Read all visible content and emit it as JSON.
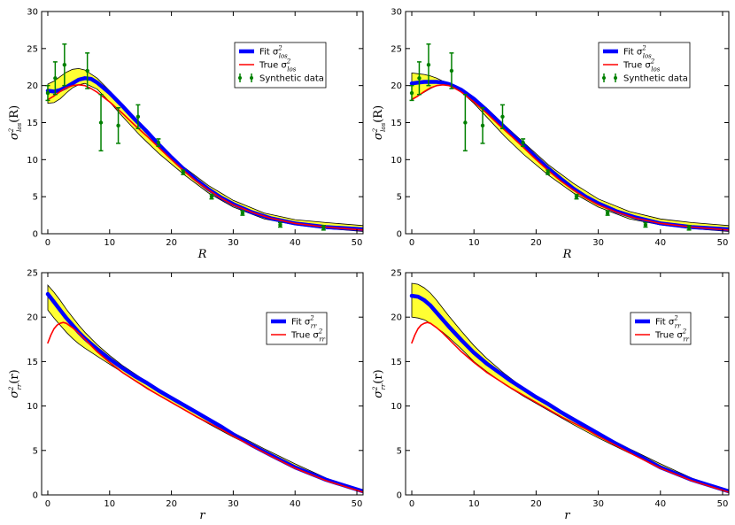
{
  "chart_data": [
    {
      "type": "line",
      "title": "",
      "xlabel": "R",
      "ylabel": {
        "base": "σ",
        "sup": "2",
        "sub": "los",
        "arg": "(R)"
      },
      "xlim": [
        -1,
        51
      ],
      "ylim": [
        0,
        30
      ],
      "xticks": [
        0,
        10,
        20,
        30,
        40,
        50
      ],
      "yticks": [
        0,
        5,
        10,
        15,
        20,
        25,
        30
      ],
      "legend": {
        "position": "upper-right",
        "entries": [
          {
            "series": "fit",
            "text": "Fit σ",
            "sup": "2",
            "sub": "los"
          },
          {
            "series": "true",
            "text": "True σ",
            "sup": "2",
            "sub": "los"
          },
          {
            "series": "data",
            "text": "Synthetic data"
          }
        ]
      },
      "colors": {
        "fit": "#0000ff",
        "true": "#ff0000",
        "data": "#008000",
        "band": "#ffff33"
      },
      "band_x": [
        0,
        1,
        2,
        3,
        4,
        5,
        6,
        8,
        10,
        12,
        15,
        18,
        22,
        26,
        30,
        35,
        40,
        45,
        51
      ],
      "band_upper": [
        20.2,
        20.6,
        21.2,
        21.8,
        22.2,
        22.3,
        22.1,
        21.0,
        19.3,
        17.3,
        14.6,
        12.0,
        9.0,
        6.5,
        4.5,
        2.8,
        1.9,
        1.5,
        1.1
      ],
      "band_lower": [
        17.6,
        17.7,
        18.2,
        19.0,
        19.7,
        20.1,
        20.3,
        19.5,
        17.8,
        15.9,
        13.2,
        10.8,
        8.0,
        5.5,
        3.6,
        2.0,
        1.2,
        0.7,
        0.3
      ],
      "series": [
        {
          "id": "fit",
          "x": [
            0,
            1,
            2,
            3,
            4,
            5,
            6,
            7,
            8,
            10,
            12,
            14,
            16,
            18,
            20,
            22,
            24,
            26,
            28,
            30,
            33,
            36,
            40,
            45,
            51
          ],
          "y": [
            19.3,
            19.2,
            19.4,
            19.8,
            20.3,
            20.8,
            21.0,
            20.9,
            20.4,
            19.0,
            17.3,
            15.5,
            13.8,
            12.0,
            10.3,
            8.7,
            7.3,
            6.0,
            4.9,
            4.0,
            2.9,
            2.1,
            1.4,
            0.9,
            0.6
          ]
        },
        {
          "id": "true",
          "x": [
            0,
            1,
            2,
            3,
            4,
            5,
            6,
            7,
            8,
            10,
            12,
            14,
            16,
            18,
            20,
            22,
            24,
            26,
            28,
            30,
            33,
            36,
            40,
            45,
            51
          ],
          "y": [
            18.1,
            18.6,
            19.2,
            19.7,
            20.0,
            20.1,
            20.0,
            19.6,
            19.1,
            17.8,
            16.3,
            14.7,
            13.2,
            11.6,
            10.0,
            8.5,
            7.1,
            5.9,
            4.8,
            3.9,
            2.9,
            2.1,
            1.4,
            0.9,
            0.5
          ]
        }
      ],
      "points": {
        "x": [
          0.0,
          1.2,
          2.7,
          6.4,
          8.6,
          11.4,
          14.6,
          17.9,
          21.9,
          26.5,
          31.5,
          37.6,
          44.6
        ],
        "y": [
          19.0,
          21.0,
          22.8,
          22.0,
          15.0,
          14.6,
          15.8,
          12.3,
          8.3,
          5.0,
          2.8,
          1.2,
          0.8
        ],
        "err": [
          1.0,
          2.2,
          2.8,
          2.4,
          3.8,
          2.4,
          1.6,
          0.5,
          0.3,
          0.3,
          0.3,
          0.3,
          0.3
        ]
      }
    },
    {
      "type": "line",
      "title": "",
      "xlabel": "R",
      "ylabel": {
        "base": "σ",
        "sup": "2",
        "sub": "los",
        "arg": "(R)"
      },
      "xlim": [
        -1,
        51
      ],
      "ylim": [
        0,
        30
      ],
      "xticks": [
        0,
        10,
        20,
        30,
        40,
        50
      ],
      "yticks": [
        0,
        5,
        10,
        15,
        20,
        25,
        30
      ],
      "legend": {
        "position": "upper-right",
        "entries": [
          {
            "series": "fit",
            "text": "Fit σ",
            "sup": "2",
            "sub": "los"
          },
          {
            "series": "true",
            "text": "True σ",
            "sup": "2",
            "sub": "los"
          },
          {
            "series": "data",
            "text": "Synthetic data"
          }
        ]
      },
      "colors": {
        "fit": "#0000ff",
        "true": "#ff0000",
        "data": "#008000",
        "band": "#ffff33"
      },
      "band_x": [
        0,
        1,
        2,
        3,
        4,
        5,
        6,
        8,
        10,
        12,
        15,
        18,
        22,
        26,
        30,
        35,
        40,
        45,
        51
      ],
      "band_upper": [
        21.7,
        21.6,
        21.5,
        21.3,
        21.0,
        20.6,
        20.3,
        19.5,
        18.4,
        17.0,
        14.6,
        12.3,
        9.3,
        6.8,
        4.7,
        3.0,
        2.0,
        1.5,
        1.1
      ],
      "band_lower": [
        18.2,
        18.6,
        19.1,
        19.6,
        20.0,
        20.1,
        20.0,
        19.1,
        17.6,
        15.8,
        13.1,
        10.7,
        7.9,
        5.5,
        3.6,
        2.0,
        1.2,
        0.7,
        0.3
      ],
      "series": [
        {
          "id": "fit",
          "x": [
            0,
            1,
            2,
            3,
            4,
            5,
            6,
            7,
            8,
            10,
            12,
            14,
            16,
            18,
            20,
            22,
            24,
            26,
            28,
            30,
            33,
            36,
            40,
            45,
            51
          ],
          "y": [
            20.3,
            20.4,
            20.5,
            20.5,
            20.5,
            20.4,
            20.2,
            19.8,
            19.4,
            18.2,
            16.7,
            15.1,
            13.5,
            11.9,
            10.3,
            8.8,
            7.4,
            6.1,
            5.0,
            4.1,
            3.0,
            2.2,
            1.4,
            0.9,
            0.6
          ]
        },
        {
          "id": "true",
          "x": [
            0,
            1,
            2,
            3,
            4,
            5,
            6,
            7,
            8,
            10,
            12,
            14,
            16,
            18,
            20,
            22,
            24,
            26,
            28,
            30,
            33,
            36,
            40,
            45,
            51
          ],
          "y": [
            18.1,
            18.6,
            19.2,
            19.7,
            20.0,
            20.1,
            20.0,
            19.6,
            19.1,
            17.8,
            16.3,
            14.7,
            13.2,
            11.6,
            10.0,
            8.5,
            7.1,
            5.9,
            4.8,
            3.9,
            2.9,
            2.1,
            1.4,
            0.9,
            0.5
          ]
        }
      ],
      "points": {
        "x": [
          0.0,
          1.2,
          2.7,
          6.4,
          8.6,
          11.4,
          14.6,
          17.9,
          21.9,
          26.5,
          31.5,
          37.6,
          44.6
        ],
        "y": [
          19.0,
          21.0,
          22.8,
          22.0,
          15.0,
          14.6,
          15.8,
          12.3,
          8.3,
          5.0,
          2.8,
          1.2,
          0.8
        ],
        "err": [
          1.0,
          2.2,
          2.8,
          2.4,
          3.8,
          2.4,
          1.6,
          0.5,
          0.3,
          0.3,
          0.3,
          0.3,
          0.3
        ]
      }
    },
    {
      "type": "line",
      "title": "",
      "xlabel": "r",
      "ylabel": {
        "base": "σ",
        "sup": "2",
        "sub": "rr",
        "arg": "(r)"
      },
      "xlim": [
        -1,
        51
      ],
      "ylim": [
        0,
        25
      ],
      "xticks": [
        0,
        10,
        20,
        30,
        40,
        50
      ],
      "yticks": [
        0,
        5,
        10,
        15,
        20,
        25
      ],
      "legend": {
        "position": "upper-right",
        "entries": [
          {
            "series": "fit",
            "text": "Fit σ",
            "sup": "2",
            "sub": "rr"
          },
          {
            "series": "true",
            "text": "True σ",
            "sup": "2",
            "sub": "rr"
          }
        ]
      },
      "colors": {
        "fit": "#0000ff",
        "true": "#ff0000",
        "band": "#ffff33"
      },
      "band_x": [
        0,
        1,
        2,
        3,
        4,
        5,
        6,
        8,
        10,
        12,
        15,
        18,
        22,
        26,
        30,
        35,
        40,
        45,
        51
      ],
      "band_upper": [
        23.6,
        22.8,
        21.9,
        20.9,
        20.0,
        19.1,
        18.3,
        16.9,
        15.7,
        14.6,
        13.2,
        11.9,
        10.2,
        8.6,
        7.0,
        5.2,
        3.5,
        1.9,
        0.4
      ],
      "band_lower": [
        20.8,
        19.9,
        19.1,
        18.3,
        17.6,
        17.0,
        16.5,
        15.6,
        14.7,
        13.8,
        12.5,
        11.2,
        9.6,
        8.0,
        6.5,
        4.8,
        3.2,
        1.7,
        0.3
      ],
      "series": [
        {
          "id": "fit",
          "x": [
            0,
            1,
            2,
            3,
            4,
            5,
            6,
            8,
            10,
            12,
            14,
            16,
            18,
            20,
            22,
            24,
            26,
            28,
            30,
            33,
            36,
            40,
            45,
            51
          ],
          "y": [
            22.6,
            21.7,
            20.8,
            19.9,
            19.1,
            18.3,
            17.6,
            16.4,
            15.3,
            14.3,
            13.4,
            12.6,
            11.7,
            10.9,
            10.1,
            9.3,
            8.5,
            7.7,
            6.8,
            5.6,
            4.5,
            3.1,
            1.7,
            0.4
          ]
        },
        {
          "id": "true",
          "x": [
            0,
            0.5,
            1,
            1.5,
            2,
            2.5,
            3,
            4,
            5,
            6,
            8,
            10,
            12,
            14,
            16,
            18,
            20,
            22,
            24,
            26,
            28,
            30,
            33,
            36,
            40,
            45,
            51
          ],
          "y": [
            17.1,
            18.0,
            18.7,
            19.1,
            19.3,
            19.4,
            19.3,
            18.8,
            18.2,
            17.5,
            16.1,
            14.9,
            13.8,
            12.9,
            12.0,
            11.2,
            10.4,
            9.6,
            8.8,
            8.1,
            7.4,
            6.6,
            5.5,
            4.4,
            3.0,
            1.6,
            0.3
          ]
        }
      ]
    },
    {
      "type": "line",
      "title": "",
      "xlabel": "r",
      "ylabel": {
        "base": "σ",
        "sup": "2",
        "sub": "rr",
        "arg": "(r)"
      },
      "xlim": [
        -1,
        51
      ],
      "ylim": [
        0,
        25
      ],
      "xticks": [
        0,
        10,
        20,
        30,
        40,
        50
      ],
      "yticks": [
        0,
        5,
        10,
        15,
        20,
        25
      ],
      "legend": {
        "position": "upper-right",
        "entries": [
          {
            "series": "fit",
            "text": "Fit σ",
            "sup": "2",
            "sub": "rr"
          },
          {
            "series": "true",
            "text": "True σ",
            "sup": "2",
            "sub": "rr"
          }
        ]
      },
      "colors": {
        "fit": "#0000ff",
        "true": "#ff0000",
        "band": "#ffff33"
      },
      "band_x": [
        0,
        1,
        2,
        3,
        4,
        5,
        6,
        8,
        10,
        12,
        15,
        18,
        22,
        26,
        30,
        35,
        40,
        45,
        51
      ],
      "band_upper": [
        23.8,
        23.7,
        23.3,
        22.7,
        21.9,
        21.0,
        20.1,
        18.4,
        16.8,
        15.4,
        13.6,
        12.0,
        10.3,
        8.6,
        7.0,
        5.2,
        3.5,
        1.9,
        0.4
      ],
      "band_lower": [
        20.0,
        19.9,
        19.7,
        19.3,
        18.8,
        18.3,
        17.7,
        16.4,
        15.0,
        13.9,
        12.4,
        11.1,
        9.5,
        7.9,
        6.4,
        4.7,
        3.1,
        1.7,
        0.3
      ],
      "series": [
        {
          "id": "fit",
          "x": [
            0,
            1,
            2,
            3,
            4,
            5,
            6,
            8,
            10,
            12,
            14,
            16,
            18,
            20,
            22,
            24,
            26,
            28,
            30,
            33,
            36,
            40,
            45,
            51
          ],
          "y": [
            22.4,
            22.3,
            21.9,
            21.3,
            20.5,
            19.7,
            18.9,
            17.4,
            16.0,
            14.8,
            13.8,
            12.8,
            11.9,
            11.0,
            10.2,
            9.3,
            8.5,
            7.7,
            6.9,
            5.7,
            4.6,
            3.1,
            1.7,
            0.4
          ]
        },
        {
          "id": "true",
          "x": [
            0,
            0.5,
            1,
            1.5,
            2,
            2.5,
            3,
            4,
            5,
            6,
            8,
            10,
            12,
            14,
            16,
            18,
            20,
            22,
            24,
            26,
            28,
            30,
            33,
            36,
            40,
            45,
            51
          ],
          "y": [
            17.1,
            18.0,
            18.7,
            19.1,
            19.3,
            19.4,
            19.3,
            18.8,
            18.2,
            17.5,
            16.1,
            14.9,
            13.8,
            12.9,
            12.0,
            11.2,
            10.4,
            9.6,
            8.8,
            8.1,
            7.4,
            6.6,
            5.5,
            4.4,
            3.0,
            1.6,
            0.3
          ]
        }
      ]
    }
  ]
}
